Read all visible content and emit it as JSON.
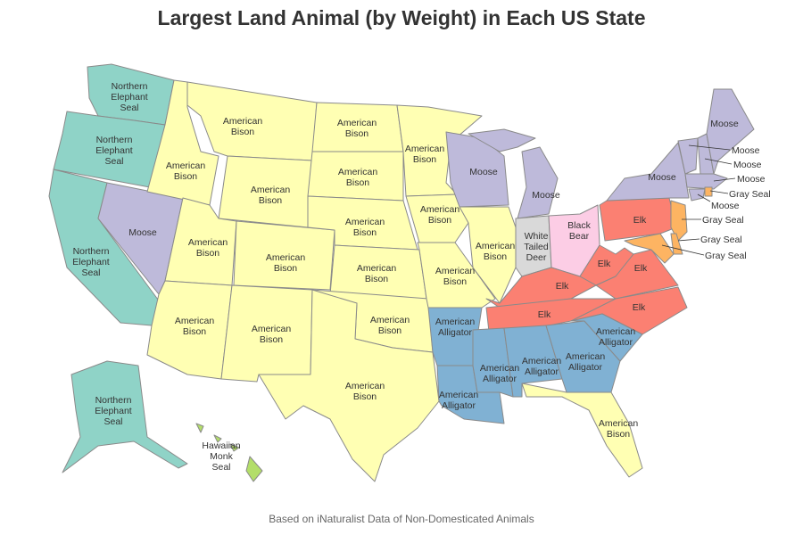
{
  "title": "Largest Land Animal (by Weight) in Each US State",
  "source": "Based on iNaturalist Data of Non-Domesticated Animals",
  "labels": [
    "Northern Elephant Seal",
    "Northern Elephant Seal",
    "Northern Elephant Seal",
    "Moose",
    "American Bison",
    "American Bison",
    "American Bison",
    "American Bison",
    "American Bison",
    "American Bison",
    "American Bison",
    "American Bison",
    "American Bison",
    "American Bison",
    "American Bison",
    "American Bison",
    "American Bison",
    "American Bison",
    "American Bison",
    "American Bison",
    "American Bison",
    "Moose",
    "Moose",
    "White Tailed Deer",
    "Black Bear",
    "Elk",
    "Elk",
    "Elk",
    "Elk",
    "Elk",
    "Elk",
    "American Alligator",
    "American Alligator",
    "American Alligator",
    "American Alligator",
    "American Alligator",
    "American Alligator",
    "American Bison",
    "Moose",
    "Moose",
    "Moose",
    "Moose",
    "Moose",
    "Moose",
    "Gray Seal",
    "Gray Seal",
    "Gray Seal",
    "Gray Seal",
    "Northern Elephant Seal",
    "Hawaiian Monk Seal"
  ]
}
